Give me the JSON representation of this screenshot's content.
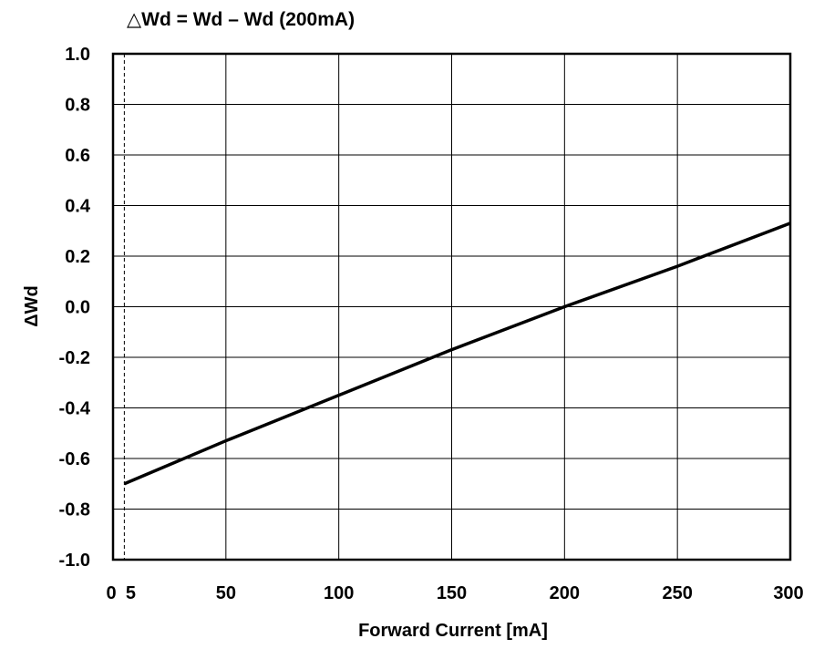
{
  "chart_data": {
    "type": "line",
    "title": "△Wd = Wd – Wd (200mA)",
    "xlabel": "Forward Current [mA]",
    "ylabel": "ΔWd",
    "xlim": [
      0,
      300
    ],
    "ylim": [
      -1.0,
      1.0
    ],
    "x_ticks": [
      0,
      5,
      50,
      100,
      150,
      200,
      250,
      300
    ],
    "x_tick_labels": [
      "0",
      "5",
      "50",
      "100",
      "150",
      "200",
      "250",
      "300"
    ],
    "x_gridlines": [
      50,
      100,
      150,
      200,
      250
    ],
    "x_dashed_reference": 5,
    "y_ticks": [
      -1.0,
      -0.8,
      -0.6,
      -0.4,
      -0.2,
      0.0,
      0.2,
      0.4,
      0.6,
      0.8,
      1.0
    ],
    "y_tick_labels": [
      "-1.0",
      "-0.8",
      "-0.6",
      "-0.4",
      "-0.2",
      "0.0",
      "0.2",
      "0.4",
      "0.6",
      "0.8",
      "1.0"
    ],
    "grid": true,
    "legend": "none",
    "series": [
      {
        "color": "#000000",
        "x": [
          5,
          50,
          100,
          150,
          200,
          250,
          300
        ],
        "y": [
          -0.7,
          -0.53,
          -0.35,
          -0.17,
          0.0,
          0.16,
          0.33
        ]
      }
    ]
  }
}
